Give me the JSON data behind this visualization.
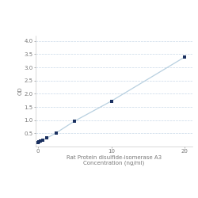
{
  "x": [
    0,
    0.156,
    0.312,
    0.625,
    1.25,
    2.5,
    5,
    10,
    20
  ],
  "y": [
    0.154,
    0.182,
    0.21,
    0.253,
    0.322,
    0.518,
    0.963,
    1.72,
    3.39
  ],
  "line_color": "#b8d0e0",
  "marker_color": "#1a3060",
  "marker_size": 3.5,
  "xlabel_line1": "Rat Protein disulfide-isomerase A3",
  "xlabel_line2": "Concentration (ng/ml)",
  "ylabel": "OD",
  "xlim": [
    -0.3,
    21
  ],
  "ylim": [
    0.0,
    4.2
  ],
  "yticks": [
    0.5,
    1.0,
    1.5,
    2.0,
    2.5,
    3.0,
    3.5,
    4.0
  ],
  "xticks": [
    0,
    10,
    20
  ],
  "grid_color": "#c8d8e8",
  "bg_color": "#ffffff",
  "axis_fontsize": 5.0,
  "tick_fontsize": 5.0,
  "label_color": "#777777"
}
